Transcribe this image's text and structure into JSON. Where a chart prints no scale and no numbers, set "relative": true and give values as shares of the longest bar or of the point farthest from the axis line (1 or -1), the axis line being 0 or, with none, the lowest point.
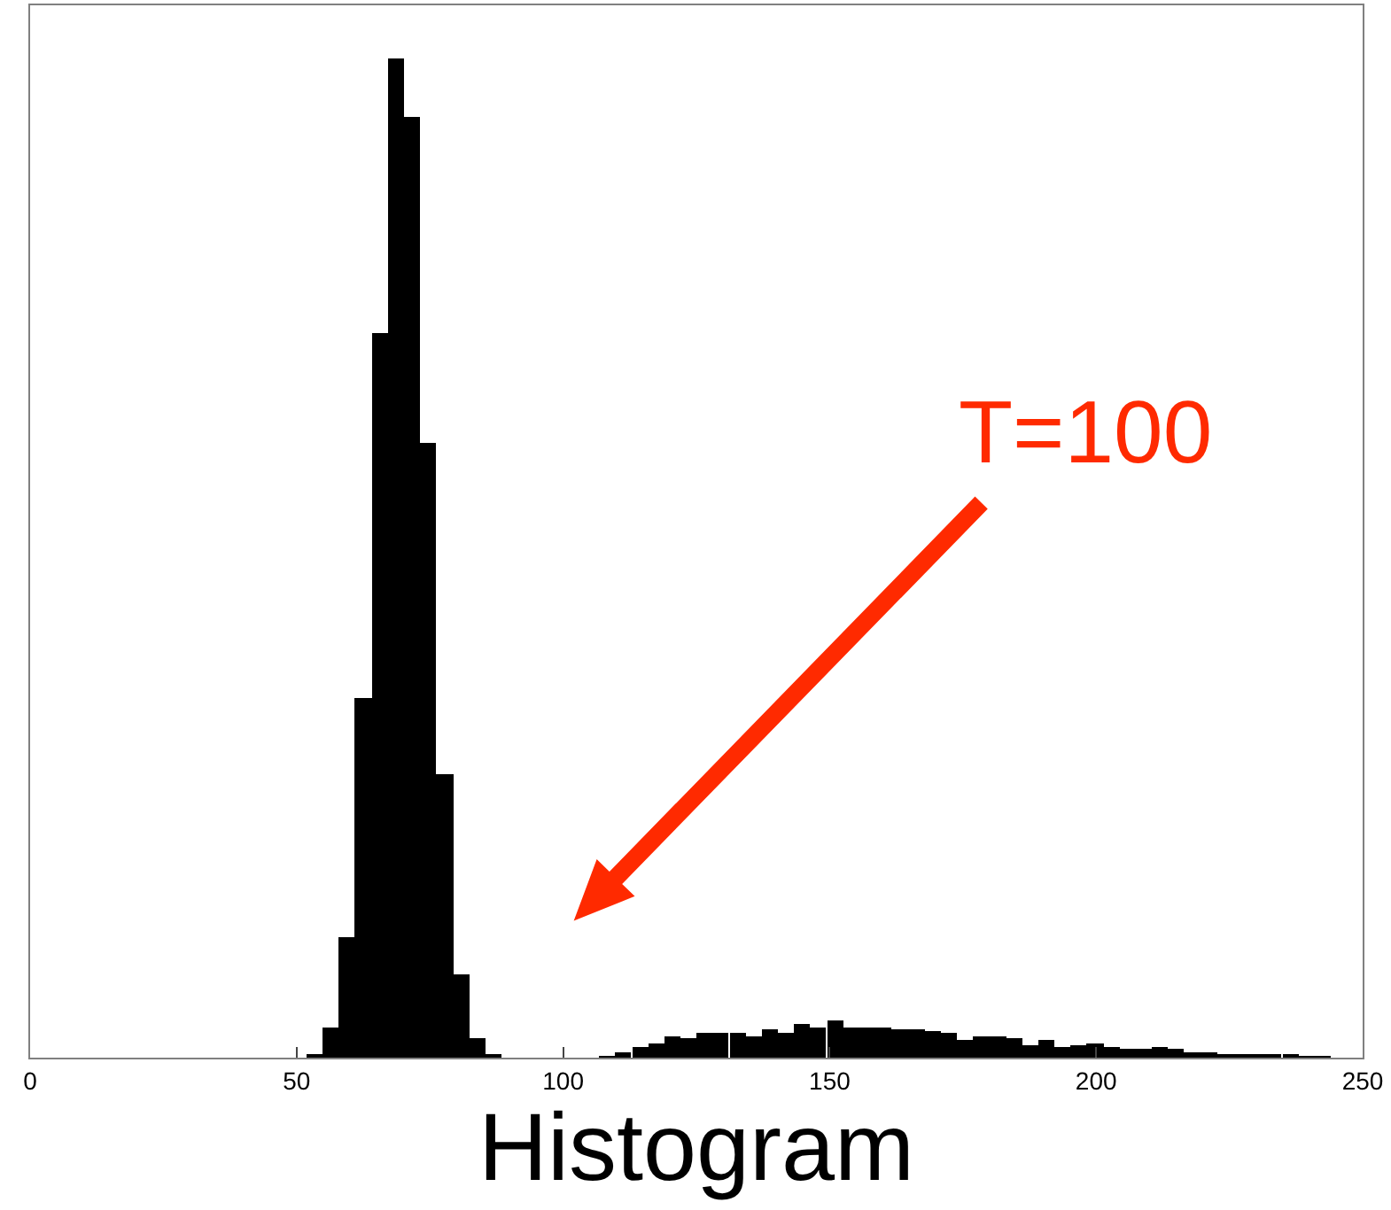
{
  "chart_data": {
    "type": "bar",
    "xlabel": "Histogram",
    "relative": true,
    "color": "#000000",
    "x": [
      53.4,
      56.4,
      59.5,
      62.5,
      65.6,
      68.6,
      71.7,
      74.7,
      77.8,
      80.8,
      83.9,
      86.9,
      108.3,
      111.3,
      114.4,
      117.4,
      120.5,
      123.5,
      126.6,
      129.6,
      132.7,
      135.7,
      138.8,
      141.8,
      144.9,
      147.9,
      151.0,
      154.0,
      157.1,
      160.1,
      163.2,
      166.2,
      169.3,
      172.3,
      175.4,
      178.4,
      181.5,
      184.5,
      187.6,
      190.6,
      193.7,
      196.7,
      199.8,
      202.8,
      205.9,
      208.9,
      212.0,
      215.0,
      218.1,
      221.1,
      224.2,
      227.2,
      230.3,
      233.3,
      236.4,
      239.4,
      242.5
    ],
    "values": [
      0.003,
      0.03,
      0.12,
      0.36,
      0.725,
      1.0,
      0.942,
      0.615,
      0.283,
      0.083,
      0.019,
      0.003,
      0.001,
      0.006,
      0.011,
      0.014,
      0.021,
      0.019,
      0.025,
      0.024,
      0.025,
      0.021,
      0.029,
      0.025,
      0.034,
      0.03,
      0.037,
      0.031,
      0.031,
      0.031,
      0.029,
      0.028,
      0.026,
      0.025,
      0.018,
      0.022,
      0.021,
      0.02,
      0.013,
      0.018,
      0.011,
      0.012,
      0.015,
      0.011,
      0.008,
      0.008,
      0.01,
      0.008,
      0.005,
      0.005,
      0.004,
      0.004,
      0.003,
      0.002,
      0.002,
      0.001,
      0.001
    ],
    "xlim": [
      0,
      250
    ],
    "xticks": [
      0,
      50,
      100,
      150,
      200,
      250
    ],
    "tick_labels": "x",
    "annotations": [
      "T=100"
    ]
  }
}
